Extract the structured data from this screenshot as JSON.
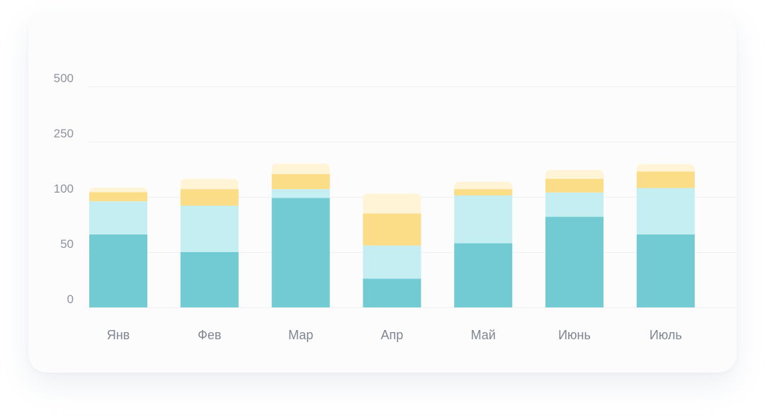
{
  "chart_data": {
    "type": "bar",
    "stacked": true,
    "categories": [
      "Янв",
      "Фев",
      "Мар",
      "Апр",
      "Май",
      "Июнь",
      "Июль"
    ],
    "y_ticks": [
      "0",
      "50",
      "100",
      "250",
      "500"
    ],
    "grid": true,
    "legend": "none",
    "series": [
      {
        "values": [
          66,
          50,
          99,
          26,
          58,
          82,
          66
        ]
      },
      {
        "values": [
          30,
          42,
          22,
          30,
          46,
          30,
          58
        ]
      },
      {
        "values": [
          17,
          29,
          41,
          29,
          17,
          37,
          45
        ]
      },
      {
        "values": [
          12,
          28,
          28,
          24,
          20,
          24,
          20
        ]
      }
    ],
    "colors": [
      "#72cbd2",
      "#c5eef3",
      "#fbdc87",
      "#fff4d5"
    ]
  }
}
